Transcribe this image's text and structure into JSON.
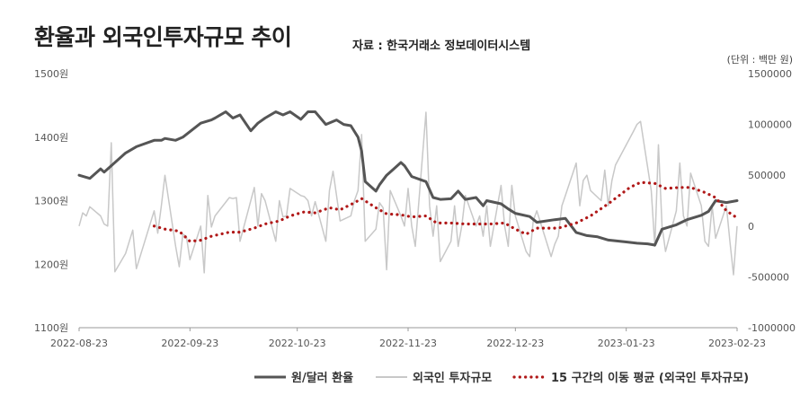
{
  "title": "환율과 외국인투자규모 추이",
  "source": "자료 : 한국거래소 정보데이터시스템",
  "unit_note": "(단위 : 백만 원)",
  "chart_data": {
    "type": "line",
    "title": "환율과 외국인투자규모 추이",
    "x_ticks": [
      "2022-08-23",
      "2022-09-23",
      "2022-10-23",
      "2022-11-23",
      "2022-12-23",
      "2023-01-23",
      "2023-02-23"
    ],
    "y_left": {
      "ticks": [
        "1500원",
        "1400원",
        "1300원",
        "1200원",
        "1100원"
      ],
      "range": [
        1100,
        1500
      ]
    },
    "y_right": {
      "ticks": [
        "1500000",
        "1000000",
        "500000",
        "0",
        "-500000",
        "-1000000"
      ],
      "range": [
        -1000000,
        1500000
      ]
    },
    "grid": false,
    "legend_position": "bottom",
    "series": [
      {
        "name": "원/달러 환율",
        "axis": "left",
        "color": "#555555",
        "style": "solid-thick",
        "points": [
          [
            "2022-08-23",
            1340
          ],
          [
            "2022-08-26",
            1335
          ],
          [
            "2022-08-29",
            1350
          ],
          [
            "2022-08-30",
            1345
          ],
          [
            "2022-09-01",
            1355
          ],
          [
            "2022-09-05",
            1375
          ],
          [
            "2022-09-08",
            1385
          ],
          [
            "2022-09-13",
            1395
          ],
          [
            "2022-09-15",
            1395
          ],
          [
            "2022-09-16",
            1398
          ],
          [
            "2022-09-19",
            1395
          ],
          [
            "2022-09-21",
            1400
          ],
          [
            "2022-09-26",
            1422
          ],
          [
            "2022-09-29",
            1427
          ],
          [
            "2022-09-30",
            1430
          ],
          [
            "2022-10-03",
            1440
          ],
          [
            "2022-10-05",
            1430
          ],
          [
            "2022-10-07",
            1435
          ],
          [
            "2022-10-10",
            1410
          ],
          [
            "2022-10-12",
            1422
          ],
          [
            "2022-10-14",
            1430
          ],
          [
            "2022-10-17",
            1440
          ],
          [
            "2022-10-19",
            1435
          ],
          [
            "2022-10-21",
            1440
          ],
          [
            "2022-10-24",
            1428
          ],
          [
            "2022-10-26",
            1440
          ],
          [
            "2022-10-28",
            1440
          ],
          [
            "2022-10-31",
            1420
          ],
          [
            "2022-11-03",
            1427
          ],
          [
            "2022-11-05",
            1420
          ],
          [
            "2022-11-07",
            1418
          ],
          [
            "2022-11-09",
            1400
          ],
          [
            "2022-11-10",
            1378
          ],
          [
            "2022-11-11",
            1330
          ],
          [
            "2022-11-14",
            1315
          ],
          [
            "2022-11-15",
            1325
          ],
          [
            "2022-11-17",
            1340
          ],
          [
            "2022-11-19",
            1350
          ],
          [
            "2022-11-21",
            1360
          ],
          [
            "2022-11-22",
            1355
          ],
          [
            "2022-11-24",
            1338
          ],
          [
            "2022-11-28",
            1330
          ],
          [
            "2022-11-30",
            1305
          ],
          [
            "2022-12-02",
            1302
          ],
          [
            "2022-12-05",
            1303
          ],
          [
            "2022-12-07",
            1315
          ],
          [
            "2022-12-09",
            1302
          ],
          [
            "2022-12-12",
            1305
          ],
          [
            "2022-12-14",
            1292
          ],
          [
            "2022-12-15",
            1300
          ],
          [
            "2022-12-19",
            1295
          ],
          [
            "2022-12-21",
            1287
          ],
          [
            "2022-12-23",
            1280
          ],
          [
            "2022-12-27",
            1275
          ],
          [
            "2022-12-29",
            1266
          ],
          [
            "2023-01-03",
            1270
          ],
          [
            "2023-01-06",
            1272
          ],
          [
            "2023-01-09",
            1250
          ],
          [
            "2023-01-12",
            1245
          ],
          [
            "2023-01-15",
            1243
          ],
          [
            "2023-01-18",
            1238
          ],
          [
            "2023-01-23",
            1235
          ],
          [
            "2023-01-26",
            1233
          ],
          [
            "2023-01-29",
            1232
          ],
          [
            "2023-01-31",
            1230
          ],
          [
            "2023-02-02",
            1255
          ],
          [
            "2023-02-06",
            1262
          ],
          [
            "2023-02-09",
            1270
          ],
          [
            "2023-02-13",
            1277
          ],
          [
            "2023-02-15",
            1283
          ],
          [
            "2023-02-17",
            1300
          ],
          [
            "2023-02-20",
            1297
          ],
          [
            "2023-02-23",
            1300
          ]
        ]
      },
      {
        "name": "외국인 투자규모",
        "axis": "right",
        "color": "#c8c8c8",
        "style": "solid-thin",
        "points": [
          [
            "2022-08-23",
            0
          ],
          [
            "2022-08-24",
            130000
          ],
          [
            "2022-08-25",
            100000
          ],
          [
            "2022-08-26",
            190000
          ],
          [
            "2022-08-29",
            100000
          ],
          [
            "2022-08-30",
            20000
          ],
          [
            "2022-08-31",
            0
          ],
          [
            "2022-09-01",
            820000
          ],
          [
            "2022-09-02",
            -450000
          ],
          [
            "2022-09-05",
            -270000
          ],
          [
            "2022-09-07",
            -40000
          ],
          [
            "2022-09-08",
            -420000
          ],
          [
            "2022-09-13",
            150000
          ],
          [
            "2022-09-14",
            -70000
          ],
          [
            "2022-09-15",
            200000
          ],
          [
            "2022-09-16",
            500000
          ],
          [
            "2022-09-19",
            -200000
          ],
          [
            "2022-09-20",
            -400000
          ],
          [
            "2022-09-21",
            -80000
          ],
          [
            "2022-09-22",
            -100000
          ],
          [
            "2022-09-23",
            -330000
          ],
          [
            "2022-09-26",
            0
          ],
          [
            "2022-09-27",
            -460000
          ],
          [
            "2022-09-28",
            300000
          ],
          [
            "2022-09-29",
            -10000
          ],
          [
            "2022-09-30",
            100000
          ],
          [
            "2022-10-04",
            280000
          ],
          [
            "2022-10-05",
            270000
          ],
          [
            "2022-10-06",
            280000
          ],
          [
            "2022-10-07",
            -150000
          ],
          [
            "2022-10-11",
            380000
          ],
          [
            "2022-10-12",
            0
          ],
          [
            "2022-10-13",
            320000
          ],
          [
            "2022-10-14",
            250000
          ],
          [
            "2022-10-17",
            -150000
          ],
          [
            "2022-10-18",
            250000
          ],
          [
            "2022-10-19",
            90000
          ],
          [
            "2022-10-20",
            100000
          ],
          [
            "2022-10-21",
            370000
          ],
          [
            "2022-10-24",
            300000
          ],
          [
            "2022-10-25",
            290000
          ],
          [
            "2022-10-26",
            250000
          ],
          [
            "2022-10-27",
            100000
          ],
          [
            "2022-10-28",
            240000
          ],
          [
            "2022-10-31",
            -150000
          ],
          [
            "2022-11-01",
            350000
          ],
          [
            "2022-11-02",
            540000
          ],
          [
            "2022-11-03",
            300000
          ],
          [
            "2022-11-04",
            50000
          ],
          [
            "2022-11-07",
            100000
          ],
          [
            "2022-11-08",
            250000
          ],
          [
            "2022-11-09",
            350000
          ],
          [
            "2022-11-10",
            900000
          ],
          [
            "2022-11-11",
            -150000
          ],
          [
            "2022-11-14",
            -30000
          ],
          [
            "2022-11-15",
            230000
          ],
          [
            "2022-11-16",
            180000
          ],
          [
            "2022-11-17",
            -430000
          ],
          [
            "2022-11-18",
            350000
          ],
          [
            "2022-11-21",
            100000
          ],
          [
            "2022-11-22",
            0
          ],
          [
            "2022-11-23",
            370000
          ],
          [
            "2022-11-24",
            0
          ],
          [
            "2022-11-25",
            -200000
          ],
          [
            "2022-11-28",
            1120000
          ],
          [
            "2022-11-29",
            200000
          ],
          [
            "2022-11-30",
            -100000
          ],
          [
            "2022-12-01",
            200000
          ],
          [
            "2022-12-02",
            -350000
          ],
          [
            "2022-12-05",
            -150000
          ],
          [
            "2022-12-06",
            200000
          ],
          [
            "2022-12-07",
            -200000
          ],
          [
            "2022-12-08",
            0
          ],
          [
            "2022-12-09",
            300000
          ],
          [
            "2022-12-12",
            0
          ],
          [
            "2022-12-13",
            100000
          ],
          [
            "2022-12-14",
            -100000
          ],
          [
            "2022-12-15",
            200000
          ],
          [
            "2022-12-16",
            -200000
          ],
          [
            "2022-12-19",
            400000
          ],
          [
            "2022-12-20",
            0
          ],
          [
            "2022-12-21",
            -200000
          ],
          [
            "2022-12-22",
            400000
          ],
          [
            "2022-12-23",
            100000
          ],
          [
            "2022-12-26",
            -250000
          ],
          [
            "2022-12-27",
            -300000
          ],
          [
            "2022-12-28",
            50000
          ],
          [
            "2022-12-29",
            150000
          ],
          [
            "2023-01-02",
            -300000
          ],
          [
            "2023-01-03",
            -180000
          ],
          [
            "2023-01-04",
            -100000
          ],
          [
            "2023-01-05",
            200000
          ],
          [
            "2023-01-06",
            300000
          ],
          [
            "2023-01-09",
            620000
          ],
          [
            "2023-01-10",
            200000
          ],
          [
            "2023-01-11",
            450000
          ],
          [
            "2023-01-12",
            500000
          ],
          [
            "2023-01-13",
            350000
          ],
          [
            "2023-01-16",
            250000
          ],
          [
            "2023-01-17",
            550000
          ],
          [
            "2023-01-18",
            200000
          ],
          [
            "2023-01-19",
            450000
          ],
          [
            "2023-01-20",
            600000
          ],
          [
            "2023-01-25",
            930000
          ],
          [
            "2023-01-26",
            1000000
          ],
          [
            "2023-01-27",
            1030000
          ],
          [
            "2023-01-30",
            350000
          ],
          [
            "2023-01-31",
            -200000
          ],
          [
            "2023-02-01",
            800000
          ],
          [
            "2023-02-02",
            0
          ],
          [
            "2023-02-03",
            -250000
          ],
          [
            "2023-02-06",
            150000
          ],
          [
            "2023-02-07",
            620000
          ],
          [
            "2023-02-08",
            100000
          ],
          [
            "2023-02-09",
            0
          ],
          [
            "2023-02-10",
            520000
          ],
          [
            "2023-02-13",
            200000
          ],
          [
            "2023-02-14",
            -150000
          ],
          [
            "2023-02-15",
            -200000
          ],
          [
            "2023-02-16",
            200000
          ],
          [
            "2023-02-17",
            -120000
          ],
          [
            "2023-02-20",
            200000
          ],
          [
            "2023-02-21",
            -150000
          ],
          [
            "2023-02-22",
            -480000
          ],
          [
            "2023-02-23",
            0
          ]
        ]
      },
      {
        "name": "15 구간의 이동 평균 (외국인 투자규모)",
        "axis": "right",
        "color": "#b01818",
        "style": "dotted",
        "points": [
          [
            "2022-09-13",
            0
          ],
          [
            "2022-09-16",
            -30000
          ],
          [
            "2022-09-20",
            -50000
          ],
          [
            "2022-09-23",
            -150000
          ],
          [
            "2022-09-26",
            -140000
          ],
          [
            "2022-09-29",
            -100000
          ],
          [
            "2022-10-04",
            -60000
          ],
          [
            "2022-10-07",
            -60000
          ],
          [
            "2022-10-11",
            -20000
          ],
          [
            "2022-10-14",
            20000
          ],
          [
            "2022-10-18",
            50000
          ],
          [
            "2022-10-21",
            100000
          ],
          [
            "2022-10-25",
            140000
          ],
          [
            "2022-10-28",
            130000
          ],
          [
            "2022-11-01",
            180000
          ],
          [
            "2022-11-04",
            160000
          ],
          [
            "2022-11-08",
            230000
          ],
          [
            "2022-11-10",
            270000
          ],
          [
            "2022-11-14",
            180000
          ],
          [
            "2022-11-17",
            120000
          ],
          [
            "2022-11-21",
            110000
          ],
          [
            "2022-11-24",
            90000
          ],
          [
            "2022-11-28",
            100000
          ],
          [
            "2022-12-01",
            30000
          ],
          [
            "2022-12-05",
            30000
          ],
          [
            "2022-12-09",
            20000
          ],
          [
            "2022-12-13",
            20000
          ],
          [
            "2022-12-16",
            20000
          ],
          [
            "2022-12-20",
            30000
          ],
          [
            "2022-12-23",
            -30000
          ],
          [
            "2022-12-26",
            -80000
          ],
          [
            "2022-12-29",
            -20000
          ],
          [
            "2023-01-04",
            -20000
          ],
          [
            "2023-01-09",
            30000
          ],
          [
            "2023-01-13",
            100000
          ],
          [
            "2023-01-18",
            220000
          ],
          [
            "2023-01-24",
            380000
          ],
          [
            "2023-01-27",
            430000
          ],
          [
            "2023-01-31",
            420000
          ],
          [
            "2023-02-03",
            370000
          ],
          [
            "2023-02-07",
            380000
          ],
          [
            "2023-02-10",
            380000
          ],
          [
            "2023-02-14",
            330000
          ],
          [
            "2023-02-17",
            280000
          ],
          [
            "2023-02-20",
            150000
          ],
          [
            "2023-02-23",
            80000
          ]
        ]
      }
    ]
  }
}
